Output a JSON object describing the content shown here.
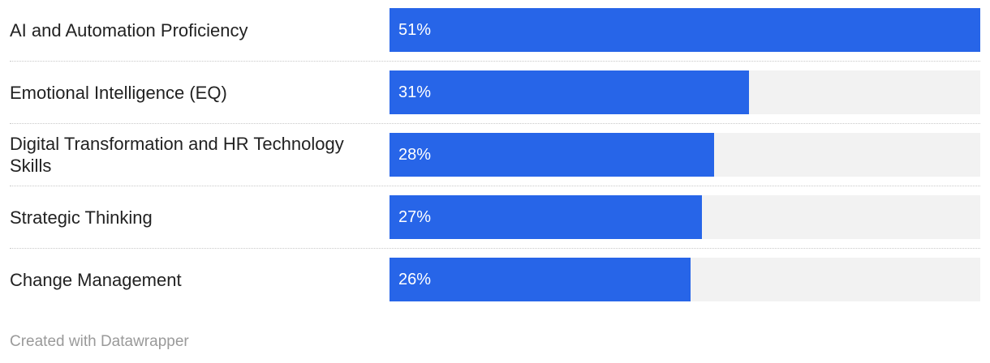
{
  "chart_data": {
    "type": "bar",
    "orientation": "horizontal",
    "categories": [
      "AI and Automation Proficiency",
      "Emotional Intelligence (EQ)",
      "Digital Transformation and HR Technology Skills",
      "Strategic Thinking",
      "Change Management"
    ],
    "values": [
      51,
      31,
      28,
      27,
      26
    ],
    "value_labels": [
      "51%",
      "31%",
      "28%",
      "27%",
      "26%"
    ],
    "xlim": [
      0,
      51
    ],
    "grid": false,
    "bar_color": "#2765e8",
    "track_color": "#f2f2f2"
  },
  "footer": {
    "credit": "Created with Datawrapper"
  }
}
